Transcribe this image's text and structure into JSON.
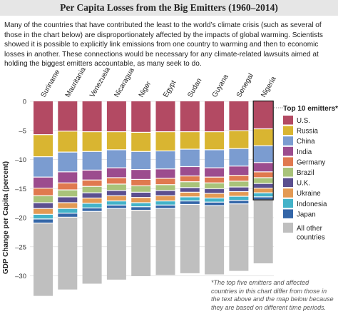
{
  "title": "Per Capita Losses from the Big Emitters (1960–2014)",
  "description": "Many of the countries that have contributed the least to the world’s climate crisis (such as several of those in the chart below) are disproportionately affected by the impacts of global warming. Scientists showed it is possible to explicitly link emissions from one country to warming and then to economic losses in another. These connections would be necessary for any climate-related lawsuits aimed at holding the biggest emitters accountable, as many seek to do.",
  "footnote": "*The top five emitters and affected countries in this chart differ from those in the text above and the map below because they are based on different time periods.",
  "chart_data": {
    "type": "bar",
    "stacked": true,
    "title": "Per Capita Losses from the Big Emitters (1960–2014)",
    "ylabel": "GDP Change per Capita (percent)",
    "ylim": [
      -35,
      0
    ],
    "yticks": [
      0,
      -5,
      -10,
      -15,
      -20,
      -25,
      -30
    ],
    "tick_labels": [
      "0",
      "–5",
      "–10",
      "–15",
      "–20",
      "–25",
      "–30"
    ],
    "categories": [
      "Suriname",
      "Mauritania",
      "Venezuela",
      "Nicaragua",
      "Niger",
      "Egypt",
      "Sudan",
      "Guyana",
      "Senegal",
      "Nigeria"
    ],
    "highlighted_category": "Nigeria",
    "legend_title": "Top 10 emitters*",
    "legend_other": "All other countries",
    "series": [
      {
        "name": "U.S.",
        "color": "#b34a63",
        "values": [
          -5.8,
          -5.2,
          -5.3,
          -5.3,
          -5.4,
          -5.3,
          -5.3,
          -5.3,
          -5.1,
          -4.8
        ]
      },
      {
        "name": "Russia",
        "color": "#d9b531",
        "values": [
          -3.8,
          -3.6,
          -3.4,
          -3.1,
          -3.3,
          -3.3,
          -3.0,
          -3.1,
          -3.1,
          -2.9
        ]
      },
      {
        "name": "China",
        "color": "#7b9cd0",
        "values": [
          -3.5,
          -3.4,
          -3.2,
          -3.1,
          -3.1,
          -3.1,
          -3.0,
          -3.1,
          -3.0,
          -2.9
        ]
      },
      {
        "name": "India",
        "color": "#9c4c8e",
        "values": [
          -1.9,
          -1.9,
          -1.7,
          -1.7,
          -1.7,
          -1.6,
          -1.6,
          -1.6,
          -1.6,
          -1.6
        ]
      },
      {
        "name": "Germany",
        "color": "#e0794f",
        "values": [
          -1.3,
          -1.2,
          -1.1,
          -1.1,
          -1.1,
          -1.1,
          -1.0,
          -1.0,
          -1.0,
          -1.0
        ]
      },
      {
        "name": "Brazil",
        "color": "#a9c37a",
        "values": [
          -1.2,
          -1.2,
          -1.1,
          -1.1,
          -1.1,
          -1.0,
          -1.0,
          -1.0,
          -1.0,
          -1.0
        ]
      },
      {
        "name": "U.K.",
        "color": "#5b4f8f",
        "values": [
          -1.0,
          -1.0,
          -0.9,
          -0.9,
          -0.9,
          -0.9,
          -0.8,
          -0.8,
          -0.8,
          -0.8
        ]
      },
      {
        "name": "Ukraine",
        "color": "#e39a54",
        "values": [
          -1.0,
          -1.0,
          -0.9,
          -0.9,
          -0.9,
          -0.9,
          -0.8,
          -0.8,
          -0.8,
          -0.8
        ]
      },
      {
        "name": "Indonesia",
        "color": "#43b3c9",
        "values": [
          -0.8,
          -0.8,
          -0.8,
          -0.7,
          -0.7,
          -0.7,
          -0.7,
          -0.7,
          -0.7,
          -0.7
        ]
      },
      {
        "name": "Japan",
        "color": "#3466a8",
        "values": [
          -0.7,
          -0.7,
          -0.6,
          -0.6,
          -0.6,
          -0.6,
          -0.6,
          -0.6,
          -0.6,
          -0.5
        ]
      },
      {
        "name": "All other countries",
        "color": "#bfbfbf",
        "values": [
          -12.6,
          -12.5,
          -12.5,
          -12.3,
          -11.4,
          -11.5,
          -11.9,
          -11.9,
          -11.6,
          -11.0
        ]
      }
    ]
  }
}
